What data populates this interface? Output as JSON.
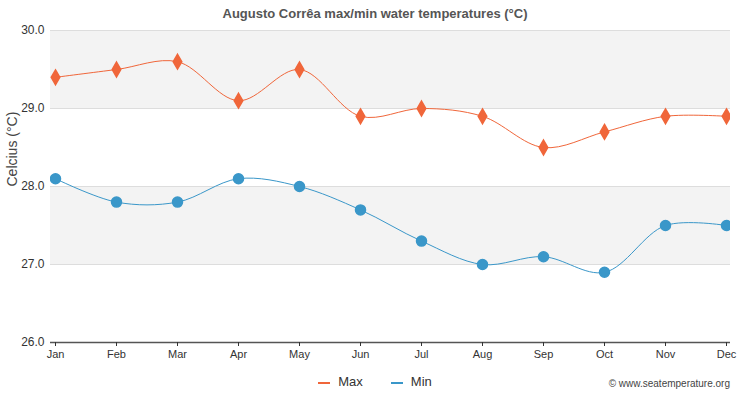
{
  "chart_data": {
    "type": "line",
    "title": "Augusto Corrêa max/min water temperatures (°C)",
    "y_label": "Celcius (°C)",
    "caption": "© www.seatemperature.org",
    "categories": [
      "Jan",
      "Feb",
      "Mar",
      "Apr",
      "May",
      "Jun",
      "Jul",
      "Aug",
      "Sep",
      "Oct",
      "Nov",
      "Dec"
    ],
    "series": [
      {
        "name": "Max",
        "color": "#f0663a",
        "marker": "diamond",
        "values": [
          29.4,
          29.5,
          29.6,
          29.1,
          29.5,
          28.9,
          29.0,
          28.9,
          28.5,
          28.7,
          28.9,
          28.9
        ]
      },
      {
        "name": "Min",
        "color": "#3a97c9",
        "marker": "circle",
        "values": [
          28.1,
          27.8,
          27.8,
          28.1,
          28.0,
          27.7,
          27.3,
          27.0,
          27.1,
          26.9,
          27.5,
          27.5
        ]
      }
    ],
    "ylim": [
      26,
      30
    ],
    "yticks": [
      26,
      27,
      28,
      29,
      30
    ],
    "grid": true,
    "legend": "bottom"
  }
}
